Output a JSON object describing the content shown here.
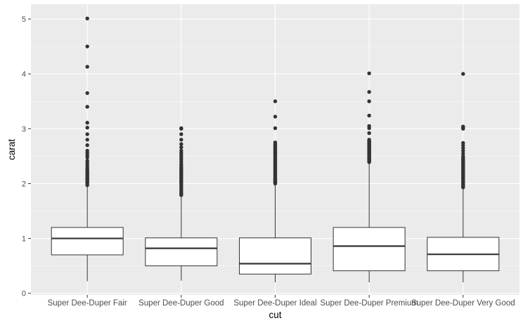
{
  "chart_data": {
    "type": "boxplot",
    "xlabel": "cut",
    "ylabel": "carat",
    "ylim": [
      -0.03,
      5.27
    ],
    "yticks": [
      0,
      1,
      2,
      3,
      4,
      5
    ],
    "grid": true,
    "colors": {
      "panel": "#ebebeb",
      "grid_major": "#ffffff",
      "box_fill": "#ffffff",
      "box_line": "#333333",
      "outlier": "#333333"
    },
    "categories": [
      "Super Dee-Duper Fair",
      "Super Dee-Duper Good",
      "Super Dee-Duper Ideal",
      "Super Dee-Duper Premium",
      "Super Dee-Duper Very Good"
    ],
    "boxes": [
      {
        "min": 0.22,
        "q1": 0.7,
        "median": 1.0,
        "q3": 1.2,
        "max": 1.95,
        "outliers": [
          1.97,
          2.0,
          2.02,
          2.04,
          2.06,
          2.08,
          2.1,
          2.12,
          2.14,
          2.16,
          2.18,
          2.2,
          2.22,
          2.24,
          2.27,
          2.3,
          2.34,
          2.38,
          2.42,
          2.48,
          2.52,
          2.56,
          2.6,
          2.7,
          2.8,
          2.9,
          3.02,
          3.11,
          3.4,
          3.65,
          4.13,
          4.5,
          5.01
        ]
      },
      {
        "min": 0.23,
        "q1": 0.5,
        "median": 0.82,
        "q3": 1.01,
        "max": 1.77,
        "outliers": [
          1.79,
          1.81,
          1.83,
          1.85,
          1.88,
          1.91,
          1.94,
          1.97,
          2.0,
          2.02,
          2.04,
          2.06,
          2.08,
          2.1,
          2.12,
          2.14,
          2.16,
          2.18,
          2.2,
          2.22,
          2.24,
          2.26,
          2.28,
          2.3,
          2.33,
          2.36,
          2.4,
          2.44,
          2.48,
          2.52,
          2.56,
          2.6,
          2.66,
          2.72,
          2.8,
          2.9,
          3.0,
          3.01
        ]
      },
      {
        "min": 0.2,
        "q1": 0.35,
        "median": 0.54,
        "q3": 1.01,
        "max": 1.99,
        "outliers": [
          2.0,
          2.01,
          2.02,
          2.03,
          2.04,
          2.05,
          2.06,
          2.07,
          2.08,
          2.09,
          2.1,
          2.12,
          2.14,
          2.16,
          2.18,
          2.2,
          2.22,
          2.24,
          2.26,
          2.28,
          2.3,
          2.32,
          2.34,
          2.36,
          2.38,
          2.4,
          2.42,
          2.44,
          2.46,
          2.48,
          2.5,
          2.52,
          2.54,
          2.56,
          2.58,
          2.6,
          2.62,
          2.64,
          2.66,
          2.68,
          2.7,
          2.72,
          2.75,
          3.01,
          3.22,
          3.5
        ]
      },
      {
        "min": 0.2,
        "q1": 0.41,
        "median": 0.86,
        "q3": 1.2,
        "max": 2.38,
        "outliers": [
          2.39,
          2.4,
          2.41,
          2.42,
          2.43,
          2.44,
          2.45,
          2.46,
          2.47,
          2.48,
          2.49,
          2.5,
          2.51,
          2.52,
          2.53,
          2.54,
          2.55,
          2.56,
          2.57,
          2.58,
          2.59,
          2.6,
          2.61,
          2.62,
          2.63,
          2.64,
          2.65,
          2.66,
          2.67,
          2.68,
          2.69,
          2.7,
          2.71,
          2.72,
          2.73,
          2.74,
          2.75,
          2.76,
          2.77,
          2.78,
          2.8,
          2.92,
          3.01,
          3.05,
          3.24,
          3.5,
          3.67,
          4.01
        ]
      },
      {
        "min": 0.2,
        "q1": 0.41,
        "median": 0.71,
        "q3": 1.02,
        "max": 1.92,
        "outliers": [
          1.93,
          1.95,
          1.97,
          1.99,
          2.01,
          2.03,
          2.05,
          2.07,
          2.09,
          2.11,
          2.13,
          2.15,
          2.17,
          2.19,
          2.21,
          2.23,
          2.25,
          2.27,
          2.29,
          2.31,
          2.33,
          2.35,
          2.37,
          2.39,
          2.41,
          2.43,
          2.45,
          2.47,
          2.5,
          2.55,
          2.6,
          2.65,
          2.7,
          2.74,
          3.0,
          3.02,
          3.04,
          4.0
        ]
      }
    ]
  }
}
